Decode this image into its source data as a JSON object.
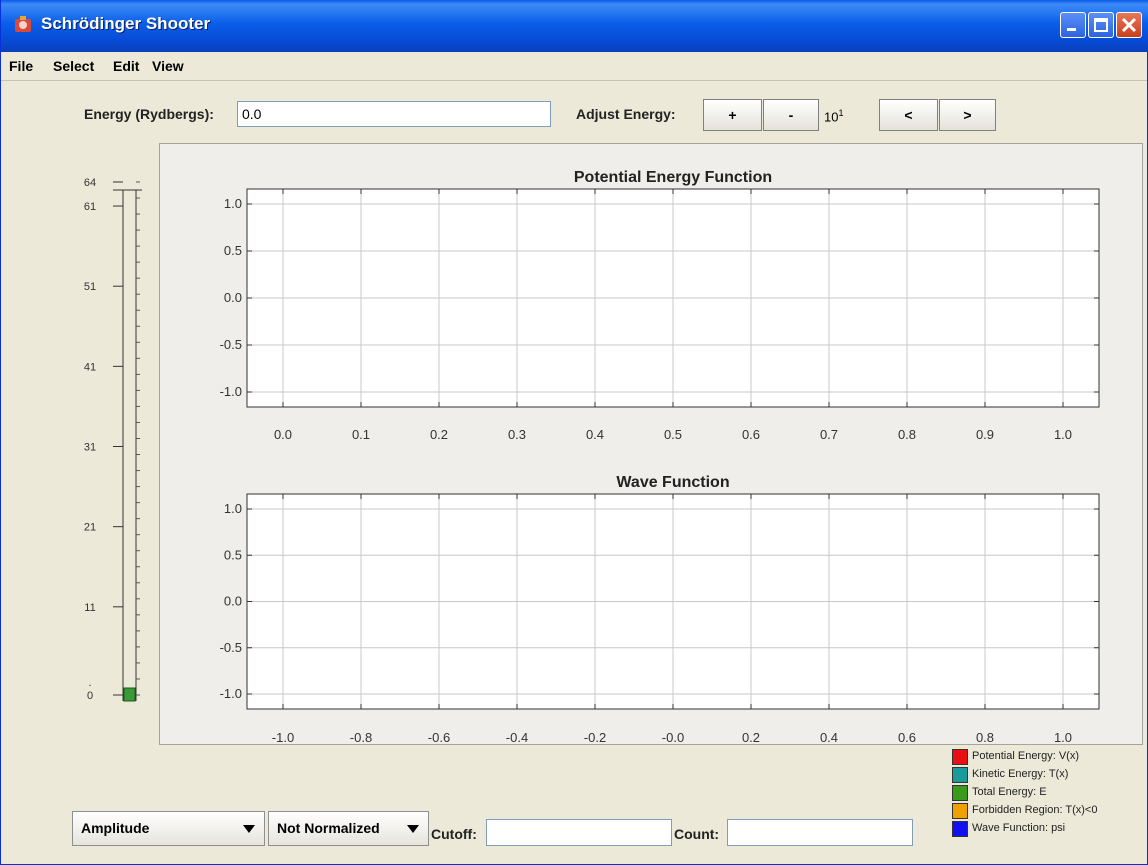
{
  "window": {
    "title": "Schrödinger Shooter"
  },
  "menu": [
    "File",
    "Select",
    "Edit",
    "View"
  ],
  "energy": {
    "label": "Energy (Rydbergs):",
    "value": "0.0"
  },
  "adjust": {
    "label": "Adjust Energy:",
    "plus": "+",
    "minus": "-",
    "power_base": "10",
    "power_exp": "1",
    "left": "<",
    "right": ">"
  },
  "slider": {
    "ticks": [
      "64",
      "61",
      "51",
      "41",
      "31",
      "21",
      "11",
      ".",
      "0"
    ],
    "value": 0,
    "color": "#3a9a3a"
  },
  "chart_data": [
    {
      "type": "line",
      "title": "Potential Energy Function",
      "x_ticks": [
        "0.0",
        "0.1",
        "0.2",
        "0.3",
        "0.4",
        "0.5",
        "0.6",
        "0.7",
        "0.8",
        "0.9",
        "1.0"
      ],
      "y_ticks": [
        "1.0",
        "0.5",
        "0.0",
        "-0.5",
        "-1.0"
      ],
      "xlim": [
        0,
        1
      ],
      "ylim": [
        -1,
        1
      ],
      "grid": true,
      "series": []
    },
    {
      "type": "line",
      "title": "Wave Function",
      "x_ticks": [
        "-1.0",
        "-0.8",
        "-0.6",
        "-0.4",
        "-0.2",
        "-0.0",
        "0.2",
        "0.4",
        "0.6",
        "0.8",
        "1.0"
      ],
      "y_ticks": [
        "1.0",
        "0.5",
        "0.0",
        "-0.5",
        "-1.0"
      ],
      "xlim": [
        -1,
        1
      ],
      "ylim": [
        -1,
        1
      ],
      "grid": true,
      "series": []
    }
  ],
  "legend": [
    {
      "label": "Potential Energy: V(x)",
      "color": "#e81010"
    },
    {
      "label": "Kinetic Energy: T(x)",
      "color": "#1a9a9a"
    },
    {
      "label": "Total Energy: E",
      "color": "#3a9a1a"
    },
    {
      "label": "Forbidden Region: T(x)<0",
      "color": "#f0a000"
    },
    {
      "label": "Wave Function: psi",
      "color": "#1010f0"
    }
  ],
  "bottom": {
    "mode": "Amplitude",
    "normalization": "Not Normalized",
    "cutoff_label": "Cutoff:",
    "cutoff_value": "",
    "count_label": "Count:",
    "count_value": ""
  }
}
